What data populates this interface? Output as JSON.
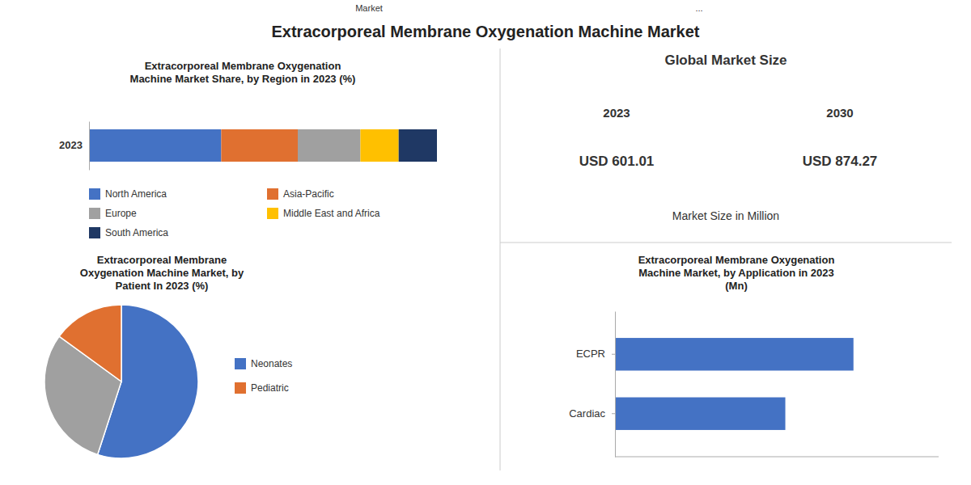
{
  "title": "Extracorporeal Membrane Oxygenation Machine Market",
  "annotations": [
    "Market",
    "...",
    "Global Market Size",
    "2023",
    "2030",
    "USD 601.01",
    "USD 874.27",
    "Market Size in Million"
  ],
  "chart_data": [
    {
      "type": "bar",
      "orientation": "horizontal",
      "stacked": true,
      "title": "Extracorporeal Membrane Oxygenation\nMachine Market Share, by Region in 2023 (%)",
      "categories": [
        "2023"
      ],
      "series": [
        {
          "name": "North America",
          "color": "#4472c4",
          "values": [
            38
          ]
        },
        {
          "name": "Asia-Pacific",
          "color": "#e07030",
          "values": [
            22
          ]
        },
        {
          "name": "Europe",
          "color": "#a0a0a0",
          "values": [
            18
          ]
        },
        {
          "name": "Middle East and Africa",
          "color": "#ffc000",
          "values": [
            11
          ]
        },
        {
          "name": "South America",
          "color": "#1f3864",
          "values": [
            11
          ]
        }
      ],
      "xlim": [
        0,
        100
      ],
      "tick_labels": "y",
      "legend": "bottom"
    },
    {
      "type": "pie",
      "title": "Extracorporeal Membrane\nOxygenation Machine Market, by\nPatient In 2023 (%)",
      "categories": [
        "Neonates",
        null,
        "Pediatric"
      ],
      "values": [
        55,
        30,
        15
      ],
      "colors": [
        "#4472c4",
        "#a0a0a0",
        "#e07030"
      ],
      "legend": "right"
    },
    {
      "type": "bar",
      "orientation": "horizontal",
      "title": "Extracorporeal Membrane Oxygenation\nMachine Market, by Application in 2023\n(Mn)",
      "categories": [
        "ECPR",
        "Cardiac"
      ],
      "values": [
        280,
        200
      ],
      "color": "#4472c4",
      "xlim": [
        0,
        380
      ],
      "tick_labels": "y"
    }
  ]
}
